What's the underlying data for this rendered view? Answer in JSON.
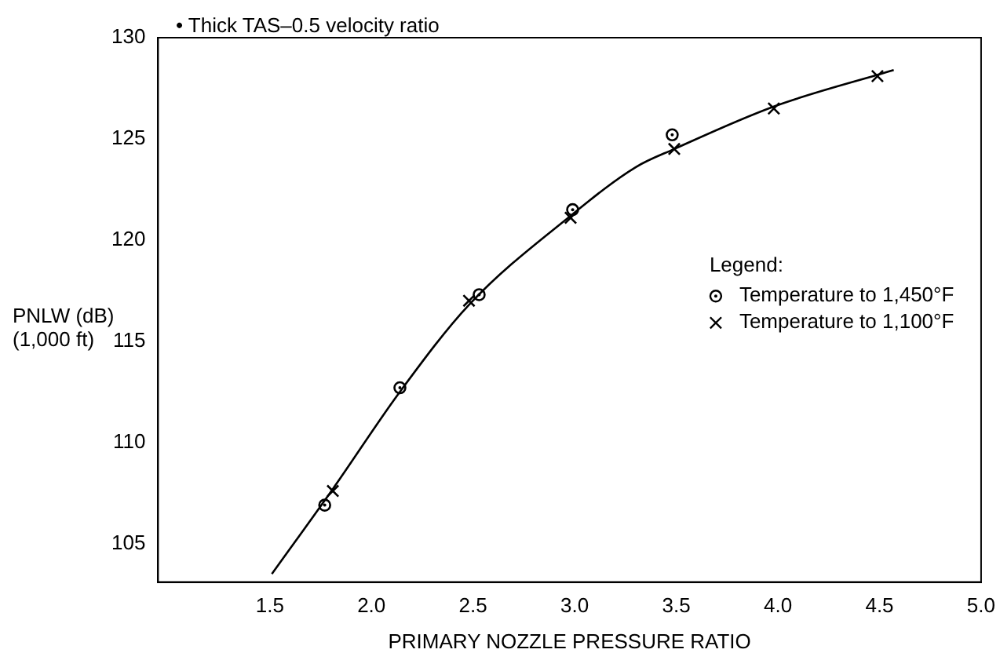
{
  "chart_data": {
    "type": "scatter",
    "ylabel": "PNLW (dB)\n(1,000 ft)",
    "xlabel": "PRIMARY NOZZLE PRESSURE RATIO",
    "annotations": [
      "• Thick TAS–0.5 velocity ratio"
    ],
    "legend_title": "Legend:",
    "legend": "right",
    "grid": false,
    "xlim": [
      0.95,
      5.0
    ],
    "xticks": [
      1.5,
      {
        "value": 2,
        "label": "2.0"
      },
      2.5,
      {
        "value": 3,
        "label": "3.0"
      },
      3.5,
      {
        "value": 4,
        "label": "4.0"
      },
      4.5,
      {
        "value": 5,
        "label": "5.0"
      }
    ],
    "ylim": [
      103.1,
      130
    ],
    "yticks": [
      105,
      110,
      115,
      120,
      125,
      130
    ],
    "series": [
      {
        "name": "Temperature to 1,450°F",
        "color": "#000000",
        "marker": "circle",
        "x": [
          1.77,
          2.14,
          2.53,
          2.99,
          3.48
        ],
        "values": [
          106.9,
          112.7,
          117.3,
          121.5,
          125.2
        ]
      },
      {
        "name": "Temperature to 1,100°F",
        "color": "#000000",
        "marker": "cross",
        "x": [
          1.81,
          2.48,
          2.98,
          3.49,
          3.98,
          4.49
        ],
        "values": [
          107.6,
          117.0,
          121.1,
          124.5,
          126.5,
          128.1
        ]
      },
      {
        "type": "line",
        "color": "#000000",
        "marker": "none",
        "line_style": "solid",
        "x": [
          1.51,
          1.81,
          2.14,
          2.48,
          2.98,
          3.3,
          3.49,
          3.98,
          4.57
        ],
        "values": [
          103.5,
          107.7,
          112.5,
          116.8,
          121.2,
          123.6,
          124.5,
          126.6,
          128.4
        ]
      }
    ]
  }
}
